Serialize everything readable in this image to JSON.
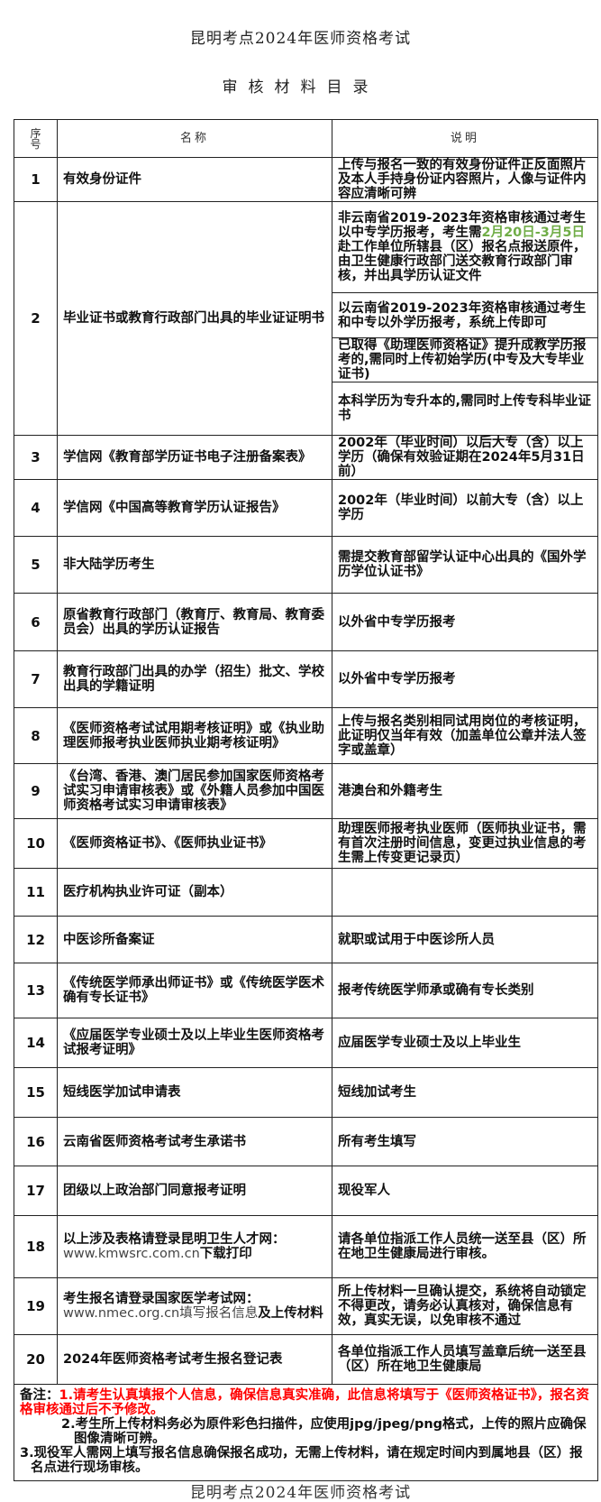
{
  "title": "昆明考点2024年医师资格考试",
  "subtitle": "审核材料目录",
  "table": {
    "headers": {
      "seq": "序号",
      "name": "名称",
      "desc": "说明"
    },
    "rows": [
      {
        "num": "1",
        "name": "有效身份证件",
        "desc": "上传与报名一致的有效身份证件正反面照片及本人手持身份证内容照片，人像与证件内容应清晰可辨"
      },
      {
        "num": "2",
        "name": "毕业证书或教育行政部门出具的毕业证证明书",
        "sub": [
          {
            "desc_pre": "非云南省2019-2023年资格审核通过考生以中专学历报考，考生需",
            "desc_highlight": "2月20日-3月5日",
            "desc_post": "赴工作单位所辖县（区）报名点报送原件，由卫生健康行政部门送交教育行政部门审核，并出具学历认证文件"
          },
          {
            "desc": "以云南省2019-2023年资格审核通过考生和中专以外学历报考，系统上传即可"
          },
          {
            "desc": "已取得《助理医师资格证》提升成教学历报考的,需同时上传初始学历(中专及大专毕业证书)"
          },
          {
            "desc": "本科学历为专升本的,需同时上传专科毕业证书"
          }
        ]
      },
      {
        "num": "3",
        "name": "学信网《教育部学历证书电子注册备案表》",
        "desc": "2002年（毕业时间）以后大专（含）以上学历（确保有效验证期在2024年5月31日前）"
      },
      {
        "num": "4",
        "name": "学信网《中国高等教育学历认证报告》",
        "desc": "2002年（毕业时间）以前大专（含）以上学历"
      },
      {
        "num": "5",
        "name": "非大陆学历考生",
        "desc": "需提交教育部留学认证中心出具的《国外学历学位认证书》"
      },
      {
        "num": "6",
        "name": "原省教育行政部门（教育厅、教育局、教育委员会）出具的学历认证报告",
        "desc": "以外省中专学历报考"
      },
      {
        "num": "7",
        "name": "教育行政部门出具的办学（招生）批文、学校出具的学籍证明",
        "desc": "以外省中专学历报考"
      },
      {
        "num": "8",
        "name": "《医师资格考试试用期考核证明》或《执业助理医师报考执业医师执业期考核证明》",
        "desc": "上传与报名类别相同试用岗位的考核证明，此证明仅当年有效（加盖单位公章并法人签字或盖章）"
      },
      {
        "num": "9",
        "name": "《台湾、香港、澳门居民参加国家医师资格考试实习申请审核表》或《外籍人员参加中国医师资格考试实习申请审核表》",
        "desc": "港澳台和外籍考生"
      },
      {
        "num": "10",
        "name": "《医师资格证书》、《医师执业证书》",
        "desc": "助理医师报考执业医师（医师执业证书，需有首次注册时间信息，变更过执业信息的考生需上传变更记录页）"
      },
      {
        "num": "11",
        "name": "医疗机构执业许可证（副本）",
        "desc": ""
      },
      {
        "num": "12",
        "name": "中医诊所备案证",
        "desc": "就职或试用于中医诊所人员"
      },
      {
        "num": "13",
        "name": "《传统医学师承出师证书》或《传统医学医术确有专长证书》",
        "desc": "报考传统医学师承或确有专长类别"
      },
      {
        "num": "14",
        "name": "《应届医学专业硕士及以上毕业生医师资格考试报考证明》",
        "desc": "应届医学专业硕士及以上毕业生"
      },
      {
        "num": "15",
        "name": "短线医学加试申请表",
        "desc": "短线加试考生"
      },
      {
        "num": "16",
        "name": "云南省医师资格考试考生承诺书",
        "desc": "所有考生填写"
      },
      {
        "num": "17",
        "name": "团级以上政治部门同意报考证明",
        "desc": "现役军人"
      },
      {
        "num": "18",
        "name_pre": "以上涉及表格请登录昆明卫生人才网：",
        "name_url": "www.kmwsrc.com.cn",
        "name_post": "下载打印",
        "desc": "请各单位指派工作人员统一送至县（区）所在地卫生健康局进行审核。"
      },
      {
        "num": "19",
        "name_pre": "考生报名请登录国家医学考试网：",
        "name_url": "www.nmec.org.cn填写报名信息",
        "name_post": "及上传材料",
        "desc": "所上传材料一旦确认提交，系统将自动锁定不得更改，请务必认真核对，确保信息有效，真实无误，以免审核不通过"
      },
      {
        "num": "20",
        "name": "2024年医师资格考试考生报名登记表",
        "desc": "各单位指派工作人员填写盖章后统一送至县（区）所在地卫生健康局"
      }
    ]
  },
  "notes": {
    "label": "备注：",
    "items": [
      "1.请考生认真填报个人信息，确保信息真实准确，此信息将填写于《医师资格证书》，报名资格审核通过后不予修改。",
      "2.考生所上传材料务必为原件彩色扫描件，应使用jpg/jpeg/png格式，上传的照片应确保图像清晰可辨。",
      "3.现役军人需网上填写报名信息确保报名成功，无需上传材料，请在规定时间内到属地县（区）报名点进行现场审核。"
    ],
    "highlight_color": "#ff0000"
  },
  "footer_cut_title": "昆明考点2024年医师资格考试",
  "colors": {
    "highlight_date": "#70ad47",
    "note_red": "#ff0000",
    "border": "#222222"
  }
}
